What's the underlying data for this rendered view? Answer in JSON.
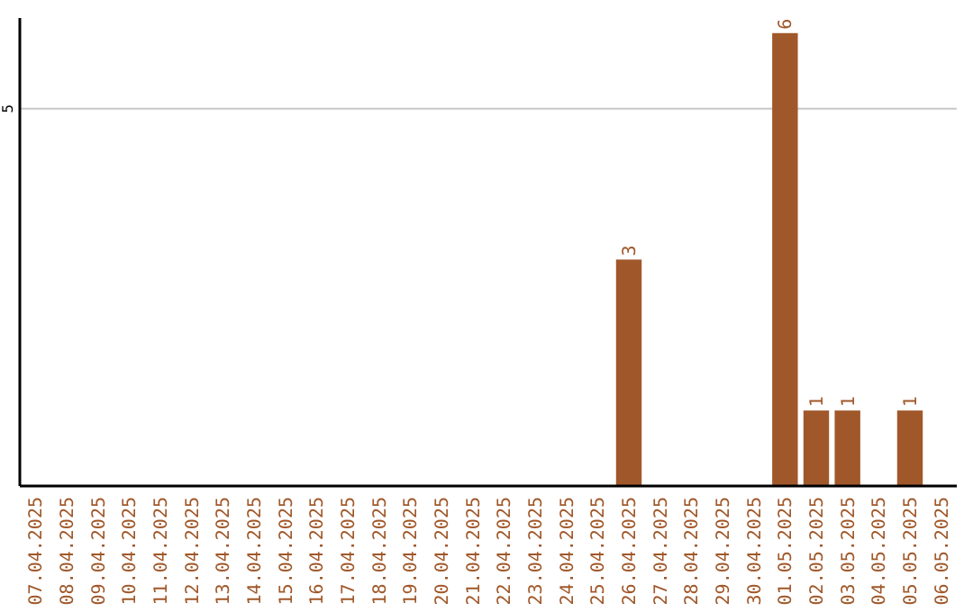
{
  "chart_data": {
    "type": "bar",
    "ylim": [
      0,
      6.2
    ],
    "categories": [
      "07.04.2025",
      "08.04.2025",
      "09.04.2025",
      "10.04.2025",
      "11.04.2025",
      "12.04.2025",
      "13.04.2025",
      "14.04.2025",
      "15.04.2025",
      "16.04.2025",
      "17.04.2025",
      "18.04.2025",
      "19.04.2025",
      "20.04.2025",
      "21.04.2025",
      "22.04.2025",
      "23.04.2025",
      "24.04.2025",
      "25.04.2025",
      "26.04.2025",
      "27.04.2025",
      "28.04.2025",
      "29.04.2025",
      "30.04.2025",
      "01.05.2025",
      "02.05.2025",
      "03.05.2025",
      "04.05.2025",
      "05.05.2025",
      "06.05.2025"
    ],
    "values": [
      null,
      null,
      null,
      null,
      null,
      null,
      null,
      null,
      null,
      null,
      null,
      null,
      null,
      null,
      null,
      null,
      null,
      null,
      null,
      3,
      null,
      null,
      null,
      null,
      6,
      1,
      1,
      null,
      1,
      null
    ],
    "data_labels": true,
    "color": "#a0582a",
    "yticks": [
      5
    ],
    "grid": "y"
  }
}
